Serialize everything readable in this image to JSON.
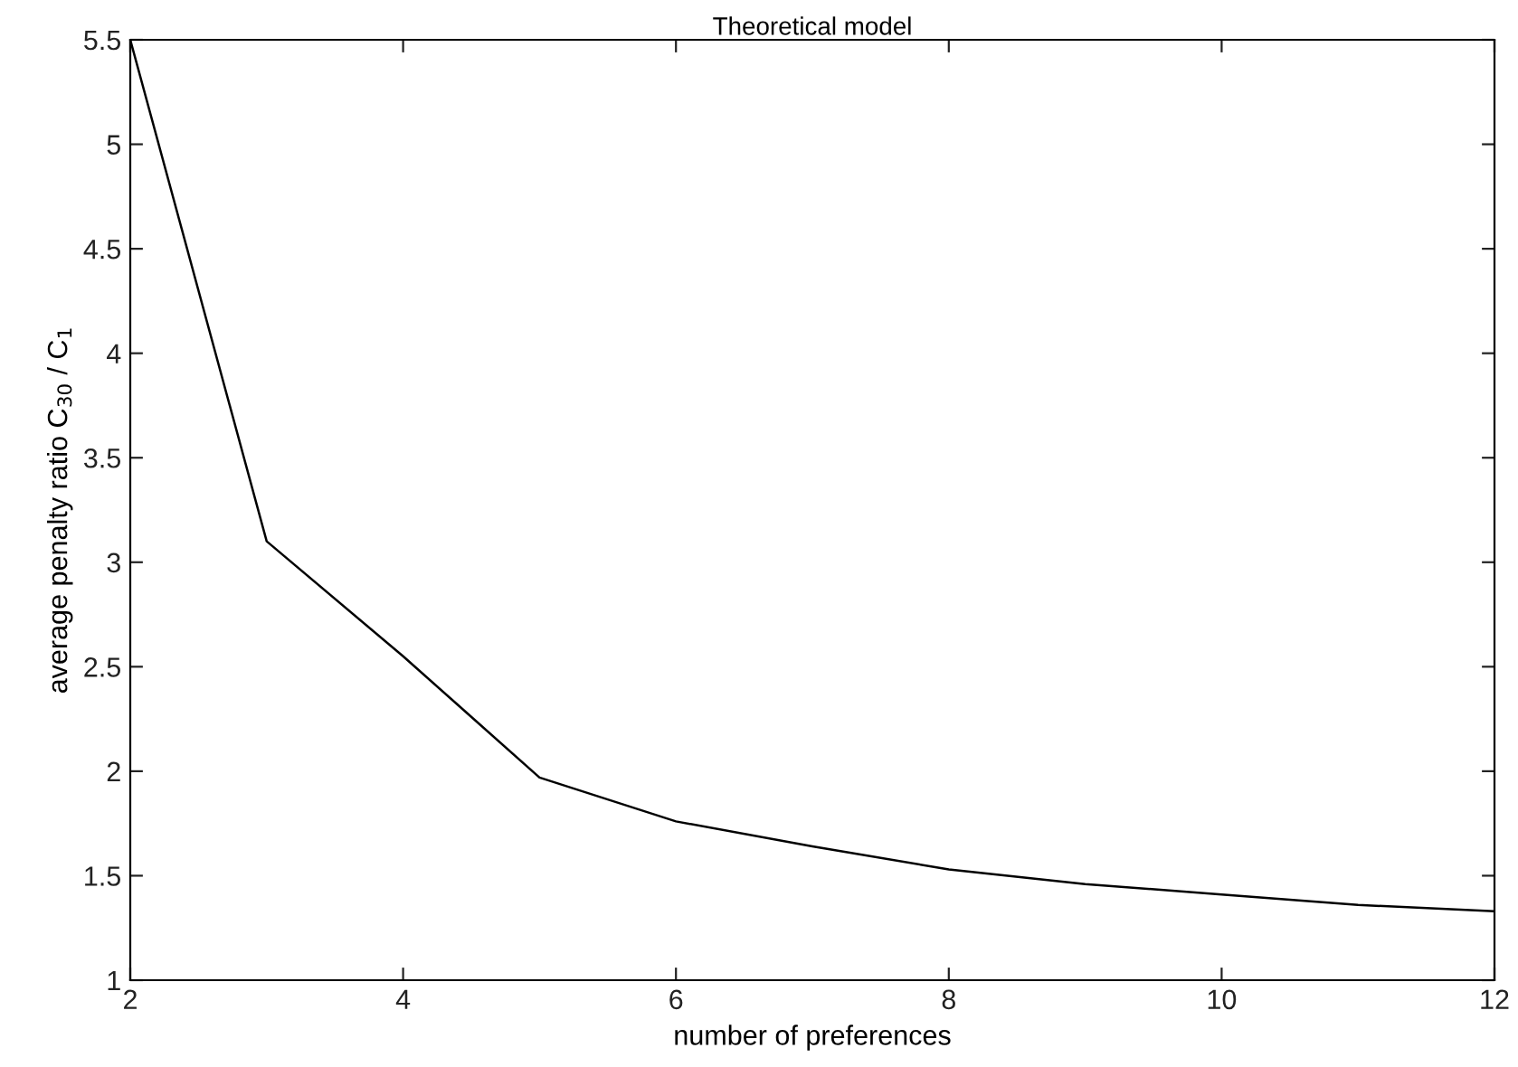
{
  "chart_data": {
    "type": "line",
    "title": "Theoretical model",
    "xlabel": "number of preferences",
    "ylabel": "average penalty ratio C$_{30}$ / C$_{1}$",
    "x": [
      2,
      3,
      4,
      5,
      6,
      7,
      8,
      9,
      10,
      11,
      12
    ],
    "series": [
      {
        "color": "#000000",
        "values": [
          5.5,
          3.1,
          2.55,
          1.97,
          1.76,
          1.64,
          1.53,
          1.46,
          1.41,
          1.36,
          1.33
        ]
      }
    ],
    "xlim": [
      2,
      12
    ],
    "ylim": [
      1,
      5.5
    ],
    "xticks": [
      2,
      4,
      6,
      8,
      10,
      12
    ],
    "yticks": [
      1,
      1.5,
      2,
      2.5,
      3,
      3.5,
      4,
      4.5,
      5,
      5.5
    ],
    "grid": false,
    "legend": false,
    "marker": "none",
    "line_style": "solid"
  }
}
